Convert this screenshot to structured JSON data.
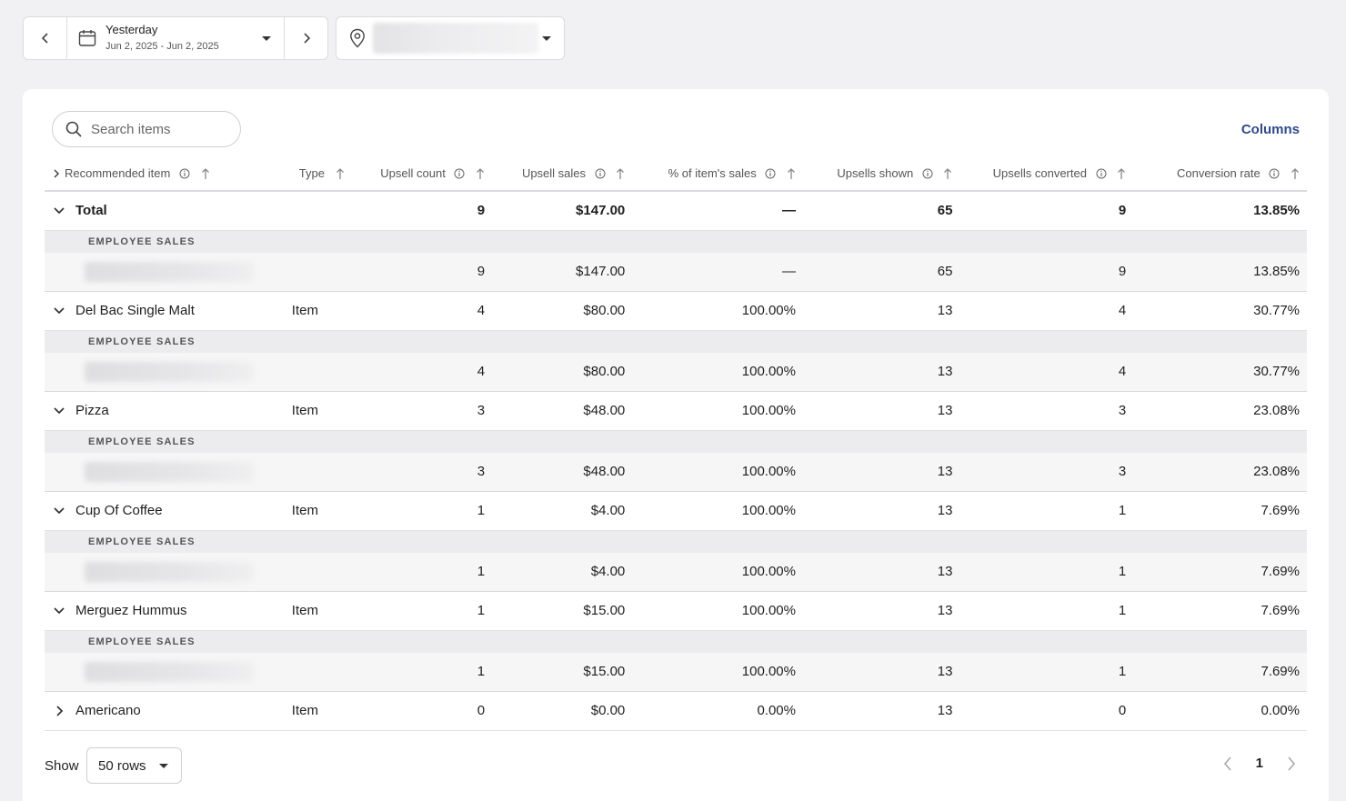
{
  "date_filter": {
    "title": "Yesterday",
    "range": "Jun 2, 2025 - Jun 2, 2025"
  },
  "search": {
    "placeholder": "Search items"
  },
  "columns_label": "Columns",
  "headers": {
    "recommended_item": "Recommended item",
    "type": "Type",
    "upsell_count": "Upsell count",
    "upsell_sales": "Upsell sales",
    "pct_item_sales": "% of item's sales",
    "upsells_shown": "Upsells shown",
    "upsells_converted": "Upsells converted",
    "conversion_rate": "Conversion rate"
  },
  "sub_label": "EMPLOYEE SALES",
  "total": {
    "name": "Total",
    "upsell_count": "9",
    "upsell_sales": "$147.00",
    "pct": "—",
    "shown": "65",
    "converted": "9",
    "rate": "13.85%",
    "sub": {
      "upsell_count": "9",
      "upsell_sales": "$147.00",
      "pct": "—",
      "shown": "65",
      "converted": "9",
      "rate": "13.85%"
    }
  },
  "rows": [
    {
      "name": "Del Bac Single Malt",
      "type": "Item",
      "upsell_count": "4",
      "upsell_sales": "$80.00",
      "pct": "100.00%",
      "shown": "13",
      "converted": "4",
      "rate": "30.77%"
    },
    {
      "name": "Pizza",
      "type": "Item",
      "upsell_count": "3",
      "upsell_sales": "$48.00",
      "pct": "100.00%",
      "shown": "13",
      "converted": "3",
      "rate": "23.08%"
    },
    {
      "name": "Cup Of Coffee",
      "type": "Item",
      "upsell_count": "1",
      "upsell_sales": "$4.00",
      "pct": "100.00%",
      "shown": "13",
      "converted": "1",
      "rate": "7.69%"
    },
    {
      "name": "Merguez Hummus",
      "type": "Item",
      "upsell_count": "1",
      "upsell_sales": "$15.00",
      "pct": "100.00%",
      "shown": "13",
      "converted": "1",
      "rate": "7.69%"
    },
    {
      "name": "Americano",
      "type": "Item",
      "upsell_count": "0",
      "upsell_sales": "$0.00",
      "pct": "0.00%",
      "shown": "13",
      "converted": "0",
      "rate": "0.00%"
    }
  ],
  "footer": {
    "show_label": "Show",
    "rows_value": "50 rows",
    "page": "1"
  },
  "icons": {
    "prev": "chevron-left-icon",
    "next": "chevron-right-icon",
    "calendar": "calendar-icon",
    "location": "location-pin-icon",
    "search": "search-icon",
    "info": "info-icon",
    "sort": "sort-arrow-up-icon"
  }
}
